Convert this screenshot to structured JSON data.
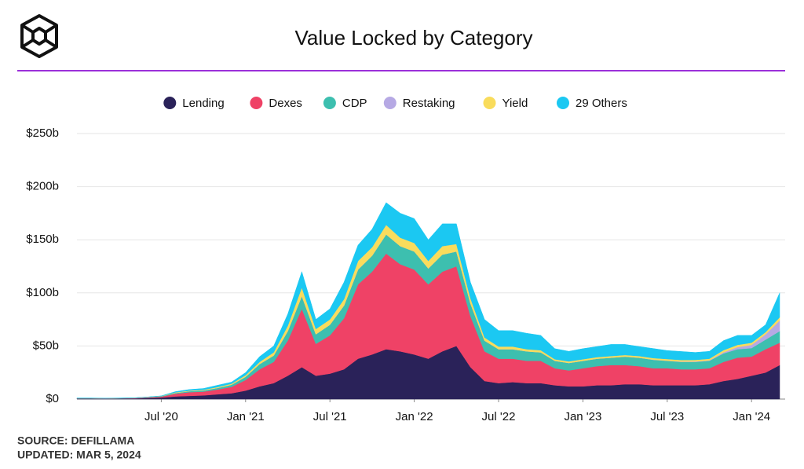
{
  "chart_data": {
    "type": "stacked-area",
    "title": "Value Locked by Category",
    "source": "SOURCE: DEFILLAMA",
    "updated": "UPDATED: MAR 5, 2024",
    "x": [
      "2020-01",
      "2020-02",
      "2020-03",
      "2020-04",
      "2020-05",
      "2020-06",
      "2020-07",
      "2020-08",
      "2020-09",
      "2020-10",
      "2020-11",
      "2020-12",
      "2021-01",
      "2021-02",
      "2021-03",
      "2021-04",
      "2021-05",
      "2021-06",
      "2021-07",
      "2021-08",
      "2021-09",
      "2021-10",
      "2021-11",
      "2021-12",
      "2022-01",
      "2022-02",
      "2022-03",
      "2022-04",
      "2022-05",
      "2022-06",
      "2022-07",
      "2022-08",
      "2022-09",
      "2022-10",
      "2022-11",
      "2022-12",
      "2023-01",
      "2023-02",
      "2023-03",
      "2023-04",
      "2023-05",
      "2023-06",
      "2023-07",
      "2023-08",
      "2023-09",
      "2023-10",
      "2023-11",
      "2023-12",
      "2024-01",
      "2024-02",
      "2024-03"
    ],
    "xlim": [
      "2020-01",
      "2024-03"
    ],
    "xticks": [
      {
        "value": "2020-07",
        "label": "Jul '20"
      },
      {
        "value": "2021-01",
        "label": "Jan '21"
      },
      {
        "value": "2021-07",
        "label": "Jul '21"
      },
      {
        "value": "2022-01",
        "label": "Jan '22"
      },
      {
        "value": "2022-07",
        "label": "Jul '22"
      },
      {
        "value": "2023-01",
        "label": "Jan '23"
      },
      {
        "value": "2023-07",
        "label": "Jul '23"
      },
      {
        "value": "2024-01",
        "label": "Jan '24"
      }
    ],
    "ylim": [
      0,
      250
    ],
    "yticks": [
      {
        "value": 0,
        "label": "$0"
      },
      {
        "value": 50,
        "label": "$50b"
      },
      {
        "value": 100,
        "label": "$100b"
      },
      {
        "value": 150,
        "label": "$150b"
      },
      {
        "value": 200,
        "label": "$200b"
      },
      {
        "value": 250,
        "label": "$250b"
      }
    ],
    "grid": true,
    "series": [
      {
        "name": "Lending",
        "color": "#2a2259",
        "values": [
          0.5,
          0.5,
          0.4,
          0.5,
          0.6,
          1,
          1.5,
          2.5,
          3,
          3.5,
          4.5,
          5.5,
          8,
          12,
          15,
          22,
          30,
          22,
          24,
          28,
          38,
          42,
          47,
          45,
          42,
          38,
          45,
          50,
          30,
          17,
          15,
          16,
          15,
          15,
          13,
          12,
          12,
          13,
          13,
          14,
          14,
          13,
          13,
          13,
          13,
          14,
          17,
          19,
          22,
          25,
          32
        ]
      },
      {
        "name": "Dexes",
        "color": "#ef4266",
        "values": [
          0.2,
          0.2,
          0.2,
          0.2,
          0.3,
          0.5,
          0.8,
          2.5,
          3.5,
          3.5,
          4.5,
          6,
          10,
          16,
          20,
          33,
          55,
          30,
          36,
          48,
          70,
          78,
          90,
          82,
          80,
          70,
          75,
          75,
          48,
          28,
          23,
          22,
          21,
          21,
          16,
          15,
          17,
          18,
          19,
          18,
          17,
          16,
          16,
          15,
          15,
          15,
          18,
          20,
          18,
          22,
          21
        ]
      },
      {
        "name": "CDP",
        "color": "#3dbfaf",
        "values": [
          0.2,
          0.2,
          0.1,
          0.2,
          0.2,
          0.3,
          0.4,
          0.8,
          1,
          1.2,
          1.5,
          2,
          3,
          5,
          6,
          9,
          12,
          9,
          10,
          12,
          14,
          15,
          18,
          17,
          17,
          15,
          16,
          14,
          12,
          10,
          9,
          9,
          9,
          8,
          7,
          7,
          7,
          7,
          7,
          8,
          8,
          8,
          7,
          7,
          7,
          7,
          8,
          8,
          8,
          9,
          11
        ]
      },
      {
        "name": "Restaking",
        "color": "#b6a9e4",
        "values": [
          0,
          0,
          0,
          0,
          0,
          0,
          0,
          0,
          0,
          0,
          0,
          0,
          0,
          0,
          0,
          0,
          0,
          0,
          0,
          0,
          0,
          0,
          0,
          0,
          0,
          0,
          0,
          0,
          0,
          0,
          0,
          0,
          0,
          0,
          0,
          0,
          0,
          0,
          0,
          0,
          0,
          0.1,
          0.2,
          0.3,
          0.4,
          0.5,
          1,
          2,
          3,
          5,
          10
        ]
      },
      {
        "name": "Yield",
        "color": "#f9dc5c",
        "values": [
          0,
          0,
          0,
          0,
          0,
          0.1,
          0.2,
          0.5,
          0.5,
          0.6,
          0.8,
          1,
          1.5,
          2,
          3,
          5,
          8,
          5,
          5,
          6,
          8,
          8,
          9,
          8,
          8,
          7,
          8,
          7,
          5,
          3,
          2.5,
          2.5,
          2,
          2,
          1.5,
          1.5,
          1.5,
          1.5,
          1.5,
          1.5,
          1.5,
          1.5,
          1.5,
          1.5,
          1.5,
          1.5,
          2,
          2,
          2,
          2,
          3
        ]
      },
      {
        "name": "29 Others",
        "color": "#1bc8f2",
        "values": [
          0.1,
          0.1,
          0.1,
          0.1,
          0.1,
          0.1,
          0.1,
          0.7,
          1,
          1.2,
          1.7,
          1.5,
          2.5,
          5,
          6,
          11,
          15,
          9,
          10,
          16,
          15,
          17,
          21,
          23,
          23,
          20,
          21,
          19,
          15,
          17,
          15,
          15,
          15,
          14,
          10,
          9.5,
          10,
          10,
          11,
          10,
          9,
          9,
          8,
          8,
          7,
          7,
          9,
          9,
          7,
          7,
          23
        ]
      }
    ]
  }
}
